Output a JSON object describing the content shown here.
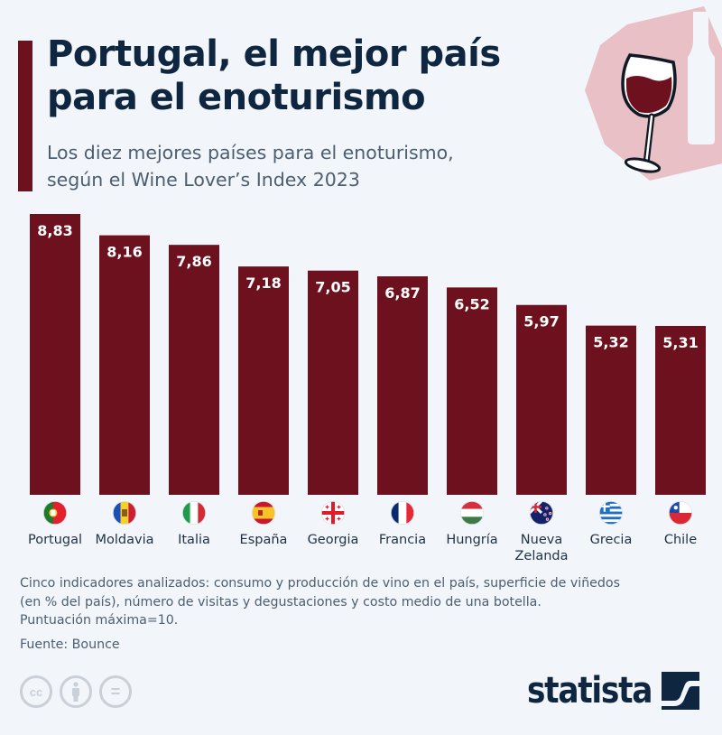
{
  "header": {
    "title_line1": "Portugal, el mejor país",
    "title_line2": "para el enoturismo",
    "subtitle_line1": "Los diez mejores países para el enoturismo,",
    "subtitle_line2": "según el Wine Lover’s Index 2023",
    "illustration": "wine-glass-and-bottle-icon"
  },
  "colors": {
    "bar": "#6e111e",
    "title": "#0f2640",
    "subtitle": "#4b5e72",
    "background": "#f2f5f9",
    "illustration_bg": "#e8c0c5"
  },
  "chart_data": {
    "type": "bar",
    "title": "Portugal, el mejor país para el enoturismo",
    "subtitle": "Los diez mejores países para el enoturismo, según el Wine Lover’s Index 2023",
    "categories": [
      "Portugal",
      "Moldavia",
      "Italia",
      "España",
      "Georgia",
      "Francia",
      "Hungría",
      "Nueva Zelanda",
      "Grecia",
      "Chile"
    ],
    "category_lines": [
      [
        "Portugal"
      ],
      [
        "Moldavia"
      ],
      [
        "Italia"
      ],
      [
        "España"
      ],
      [
        "Georgia"
      ],
      [
        "Francia"
      ],
      [
        "Hungría"
      ],
      [
        "Nueva",
        "Zelanda"
      ],
      [
        "Grecia"
      ],
      [
        "Chile"
      ]
    ],
    "values": [
      8.83,
      8.16,
      7.86,
      7.18,
      7.05,
      6.87,
      6.52,
      5.97,
      5.32,
      5.31
    ],
    "value_labels": [
      "8,83",
      "8,16",
      "7,86",
      "7,18",
      "7,05",
      "6,87",
      "6,52",
      "5,97",
      "5,32",
      "5,31"
    ],
    "flags": [
      "portugal-flag",
      "moldova-flag",
      "italy-flag",
      "spain-flag",
      "georgia-flag",
      "france-flag",
      "hungary-flag",
      "new-zealand-flag",
      "greece-flag",
      "chile-flag"
    ],
    "xlabel": "",
    "ylabel": "",
    "ylim": [
      0,
      8.83
    ],
    "grid": false,
    "legend": "none",
    "data_labels_position": "inside-top"
  },
  "notes": {
    "line1": "Cinco indicadores analizados: consumo y producción de vino en el país, superficie de viñedos",
    "line2": "(en % del país), número de visitas y degustaciones y costo medio de una botella.",
    "line3": "Puntuación máxima=10.",
    "source": "Fuente: Bounce"
  },
  "footer": {
    "cc_label": "cc",
    "equals_label": "=",
    "brand": "statista"
  }
}
